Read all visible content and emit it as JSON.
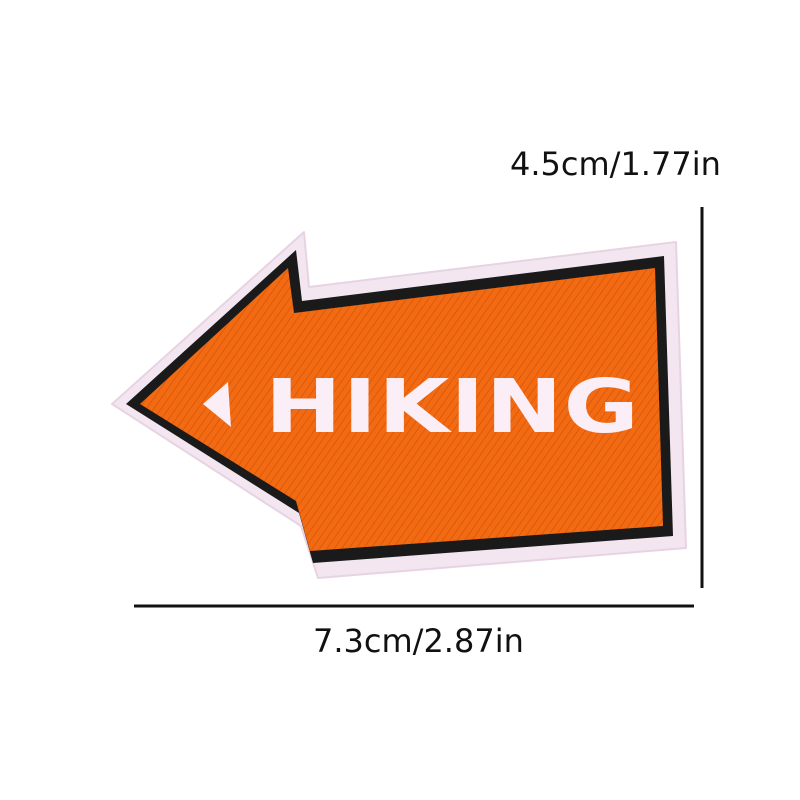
{
  "patch": {
    "text": "HIKING",
    "colors": {
      "fill": "#f26a12",
      "border": "#1a1a1a",
      "edge": "#f3e6f0",
      "text": "#fbeef6"
    },
    "icon": "left-pointing-arrow-patch"
  },
  "dimensions": {
    "height_label": "4.5cm/1.77in",
    "width_label": "7.3cm/2.87in",
    "line_color": "#111111"
  }
}
